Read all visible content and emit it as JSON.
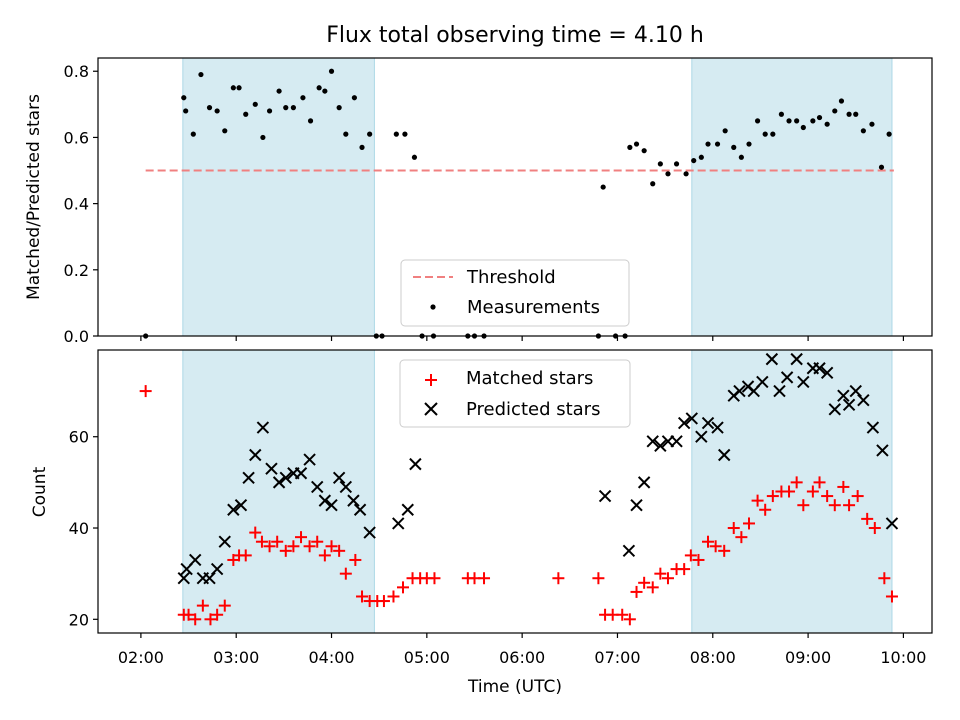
{
  "chart_data": {
    "type": "scatter",
    "title": "Flux total observing time = 4.10 h",
    "xlabel": "Time (UTC)",
    "x_ticks": [
      "02:00",
      "03:00",
      "04:00",
      "05:00",
      "06:00",
      "07:00",
      "08:00",
      "09:00",
      "10:00"
    ],
    "xlim_hours": [
      1.55,
      10.3
    ],
    "shaded_spans_hours": [
      [
        2.44,
        4.45
      ],
      [
        7.78,
        9.88
      ]
    ],
    "shade_color": "#add8e6",
    "top_panel": {
      "ylabel": "Matched/Predicted stars",
      "ylim": [
        0,
        0.84
      ],
      "y_ticks": [
        "0.0",
        "0.2",
        "0.4",
        "0.6",
        "0.8"
      ],
      "legend_position": "lower-center",
      "threshold": {
        "name": "Threshold",
        "value": 0.5,
        "x_range_hours": [
          2.05,
          9.9
        ],
        "color": "#f08080"
      },
      "measurements": {
        "name": "Measurements",
        "color": "#000000",
        "points": [
          [
            2.05,
            0.0
          ],
          [
            2.45,
            0.72
          ],
          [
            2.47,
            0.68
          ],
          [
            2.55,
            0.61
          ],
          [
            2.63,
            0.79
          ],
          [
            2.72,
            0.69
          ],
          [
            2.8,
            0.68
          ],
          [
            2.88,
            0.62
          ],
          [
            2.97,
            0.75
          ],
          [
            3.03,
            0.75
          ],
          [
            3.1,
            0.67
          ],
          [
            3.2,
            0.7
          ],
          [
            3.28,
            0.6
          ],
          [
            3.35,
            0.68
          ],
          [
            3.45,
            0.74
          ],
          [
            3.52,
            0.69
          ],
          [
            3.6,
            0.69
          ],
          [
            3.7,
            0.72
          ],
          [
            3.78,
            0.65
          ],
          [
            3.87,
            0.75
          ],
          [
            3.93,
            0.74
          ],
          [
            4.0,
            0.8
          ],
          [
            4.08,
            0.69
          ],
          [
            4.15,
            0.61
          ],
          [
            4.24,
            0.72
          ],
          [
            4.32,
            0.57
          ],
          [
            4.4,
            0.61
          ],
          [
            4.47,
            0.0
          ],
          [
            4.53,
            0.0
          ],
          [
            4.68,
            0.61
          ],
          [
            4.77,
            0.61
          ],
          [
            4.87,
            0.54
          ],
          [
            4.95,
            0.0
          ],
          [
            5.07,
            0.0
          ],
          [
            5.43,
            0.0
          ],
          [
            5.5,
            0.0
          ],
          [
            5.6,
            0.0
          ],
          [
            6.8,
            0.0
          ],
          [
            6.85,
            0.45
          ],
          [
            6.98,
            0.0
          ],
          [
            7.08,
            0.0
          ],
          [
            7.13,
            0.57
          ],
          [
            7.2,
            0.58
          ],
          [
            7.28,
            0.56
          ],
          [
            7.37,
            0.46
          ],
          [
            7.45,
            0.52
          ],
          [
            7.53,
            0.49
          ],
          [
            7.62,
            0.52
          ],
          [
            7.72,
            0.49
          ],
          [
            7.8,
            0.53
          ],
          [
            7.88,
            0.54
          ],
          [
            7.95,
            0.58
          ],
          [
            8.05,
            0.58
          ],
          [
            8.13,
            0.62
          ],
          [
            8.22,
            0.57
          ],
          [
            8.3,
            0.54
          ],
          [
            8.38,
            0.58
          ],
          [
            8.47,
            0.65
          ],
          [
            8.55,
            0.61
          ],
          [
            8.63,
            0.61
          ],
          [
            8.72,
            0.67
          ],
          [
            8.8,
            0.65
          ],
          [
            8.88,
            0.65
          ],
          [
            8.95,
            0.63
          ],
          [
            9.05,
            0.65
          ],
          [
            9.12,
            0.66
          ],
          [
            9.2,
            0.64
          ],
          [
            9.28,
            0.68
          ],
          [
            9.35,
            0.71
          ],
          [
            9.43,
            0.67
          ],
          [
            9.5,
            0.67
          ],
          [
            9.58,
            0.62
          ],
          [
            9.67,
            0.64
          ],
          [
            9.77,
            0.51
          ],
          [
            9.85,
            0.61
          ]
        ]
      }
    },
    "bottom_panel": {
      "ylabel": "Count",
      "ylim": [
        17,
        79
      ],
      "y_ticks": [
        "20",
        "40",
        "60"
      ],
      "legend_position": "upper-center",
      "series": [
        {
          "name": "Matched stars",
          "marker": "+",
          "color": "#ff0000",
          "points": [
            [
              2.05,
              70
            ],
            [
              2.45,
              21
            ],
            [
              2.5,
              21
            ],
            [
              2.57,
              20
            ],
            [
              2.65,
              23
            ],
            [
              2.73,
              20
            ],
            [
              2.8,
              21
            ],
            [
              2.88,
              23
            ],
            [
              2.97,
              33
            ],
            [
              3.03,
              34
            ],
            [
              3.1,
              34
            ],
            [
              3.2,
              39
            ],
            [
              3.27,
              37
            ],
            [
              3.35,
              36
            ],
            [
              3.43,
              37
            ],
            [
              3.52,
              35
            ],
            [
              3.6,
              36
            ],
            [
              3.68,
              38
            ],
            [
              3.77,
              36
            ],
            [
              3.85,
              37
            ],
            [
              3.93,
              34
            ],
            [
              4.0,
              36
            ],
            [
              4.08,
              35
            ],
            [
              4.15,
              30
            ],
            [
              4.25,
              33
            ],
            [
              4.32,
              25
            ],
            [
              4.4,
              24
            ],
            [
              4.48,
              24
            ],
            [
              4.55,
              24
            ],
            [
              4.65,
              25
            ],
            [
              4.75,
              27
            ],
            [
              4.85,
              29
            ],
            [
              4.93,
              29
            ],
            [
              5.0,
              29
            ],
            [
              5.08,
              29
            ],
            [
              5.43,
              29
            ],
            [
              5.5,
              29
            ],
            [
              5.6,
              29
            ],
            [
              6.38,
              29
            ],
            [
              6.8,
              29
            ],
            [
              6.87,
              21
            ],
            [
              6.95,
              21
            ],
            [
              7.05,
              21
            ],
            [
              7.13,
              20
            ],
            [
              7.2,
              26
            ],
            [
              7.28,
              28
            ],
            [
              7.37,
              27
            ],
            [
              7.45,
              30
            ],
            [
              7.53,
              29
            ],
            [
              7.62,
              31
            ],
            [
              7.7,
              31
            ],
            [
              7.77,
              34
            ],
            [
              7.85,
              33
            ],
            [
              7.95,
              37
            ],
            [
              8.03,
              36
            ],
            [
              8.12,
              35
            ],
            [
              8.22,
              40
            ],
            [
              8.3,
              38
            ],
            [
              8.38,
              41
            ],
            [
              8.47,
              46
            ],
            [
              8.55,
              44
            ],
            [
              8.63,
              47
            ],
            [
              8.72,
              48
            ],
            [
              8.8,
              48
            ],
            [
              8.88,
              50
            ],
            [
              8.95,
              45
            ],
            [
              9.05,
              48
            ],
            [
              9.12,
              50
            ],
            [
              9.2,
              47
            ],
            [
              9.28,
              45
            ],
            [
              9.37,
              49
            ],
            [
              9.43,
              45
            ],
            [
              9.52,
              47
            ],
            [
              9.62,
              42
            ],
            [
              9.7,
              40
            ],
            [
              9.8,
              29
            ],
            [
              9.88,
              25
            ]
          ]
        },
        {
          "name": "Predicted stars",
          "marker": "x",
          "color": "#000000",
          "points": [
            [
              2.45,
              29
            ],
            [
              2.48,
              31
            ],
            [
              2.57,
              33
            ],
            [
              2.65,
              29
            ],
            [
              2.72,
              29
            ],
            [
              2.8,
              31
            ],
            [
              2.88,
              37
            ],
            [
              2.97,
              44
            ],
            [
              3.05,
              45
            ],
            [
              3.13,
              51
            ],
            [
              3.2,
              56
            ],
            [
              3.28,
              62
            ],
            [
              3.37,
              53
            ],
            [
              3.45,
              50
            ],
            [
              3.52,
              51
            ],
            [
              3.6,
              52
            ],
            [
              3.68,
              52
            ],
            [
              3.77,
              55
            ],
            [
              3.85,
              49
            ],
            [
              3.93,
              46
            ],
            [
              4.0,
              45
            ],
            [
              4.08,
              51
            ],
            [
              4.15,
              49
            ],
            [
              4.23,
              46
            ],
            [
              4.3,
              44
            ],
            [
              4.4,
              39
            ],
            [
              4.7,
              41
            ],
            [
              4.8,
              44
            ],
            [
              4.88,
              54
            ],
            [
              6.87,
              47
            ],
            [
              7.12,
              35
            ],
            [
              7.2,
              45
            ],
            [
              7.28,
              50
            ],
            [
              7.37,
              59
            ],
            [
              7.45,
              58
            ],
            [
              7.53,
              59
            ],
            [
              7.62,
              59
            ],
            [
              7.7,
              63
            ],
            [
              7.78,
              64
            ],
            [
              7.88,
              60
            ],
            [
              7.95,
              63
            ],
            [
              8.05,
              62
            ],
            [
              8.12,
              56
            ],
            [
              8.22,
              69
            ],
            [
              8.28,
              70
            ],
            [
              8.37,
              71
            ],
            [
              8.43,
              70
            ],
            [
              8.52,
              72
            ],
            [
              8.62,
              77
            ],
            [
              8.7,
              70
            ],
            [
              8.78,
              73
            ],
            [
              8.88,
              77
            ],
            [
              8.95,
              72
            ],
            [
              9.05,
              75
            ],
            [
              9.12,
              75
            ],
            [
              9.2,
              74
            ],
            [
              9.28,
              66
            ],
            [
              9.37,
              69
            ],
            [
              9.43,
              67
            ],
            [
              9.5,
              70
            ],
            [
              9.58,
              68
            ],
            [
              9.68,
              62
            ],
            [
              9.78,
              57
            ],
            [
              9.88,
              41
            ]
          ]
        }
      ]
    }
  }
}
